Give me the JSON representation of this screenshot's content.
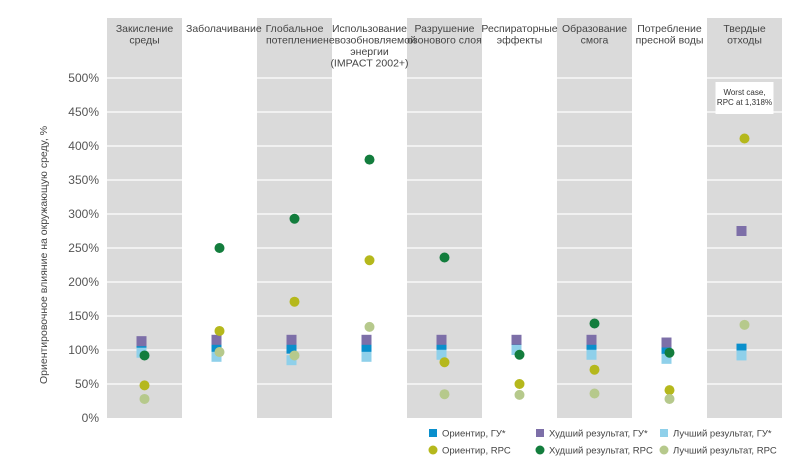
{
  "chart_data": {
    "type": "scatter",
    "ylabel": "Ориентировочное влияние на окружающую среду, %",
    "ylim": [
      0,
      500
    ],
    "y_ticks": [
      0,
      50,
      100,
      150,
      200,
      250,
      300,
      350,
      400,
      450,
      500
    ],
    "y_tick_labels": [
      "0%",
      "50%",
      "100%",
      "150%",
      "200%",
      "250%",
      "300%",
      "350%",
      "400%",
      "450%",
      "500%"
    ],
    "categories": [
      "Закисление среды",
      "Заболачивание",
      "Глобальное потепление",
      "Использование невозобновляемой энергии (IMPACT 2002+)",
      "Разрушение озонового слоя",
      "Респираторные эффекты",
      "Образование смога",
      "Потребление пресной воды",
      "Твердые отходы"
    ],
    "category_label_lines": [
      [
        "Закисление",
        "среды"
      ],
      [
        "Заболачивание"
      ],
      [
        "Глобальное",
        "потепление"
      ],
      [
        "Использование",
        "невозобновляемой",
        "энергии",
        "(IMPACT 2002+)"
      ],
      [
        "Разрушение",
        "озонового слоя"
      ],
      [
        "Респираторные",
        "эффекты"
      ],
      [
        "Образование",
        "смога"
      ],
      [
        "Потребление",
        "пресной воды"
      ],
      [
        "Твердые",
        "отходы"
      ]
    ],
    "band_shading": [
      "gray",
      "white",
      "gray",
      "white",
      "gray",
      "white",
      "gray",
      "white",
      "gray"
    ],
    "series": [
      {
        "name": "Ориентир, ГУ*",
        "marker": "square",
        "color": "#0a8fcc",
        "values": [
          102,
          102,
          102,
          102,
          102,
          102,
          102,
          100,
          102
        ]
      },
      {
        "name": "Худший результат, ГУ*",
        "marker": "square",
        "color": "#7d6fa8",
        "values": [
          113,
          115,
          115,
          115,
          115,
          115,
          115,
          111,
          275
        ]
      },
      {
        "name": "Лучший результат, ГУ*",
        "marker": "square",
        "color": "#8fd0ea",
        "values": [
          96,
          90,
          85,
          90,
          93,
          100,
          93,
          87,
          92
        ]
      },
      {
        "name": "Ориентир, RPC",
        "marker": "circle",
        "color": "#b5b81c",
        "values": [
          48,
          128,
          171,
          232,
          82,
          50,
          71,
          41,
          411
        ]
      },
      {
        "name": "Худший результат, RPC",
        "marker": "circle",
        "color": "#137d3d",
        "values": [
          92,
          250,
          293,
          380,
          236,
          93,
          139,
          96,
          null
        ]
      },
      {
        "name": "Лучший результат, RPC",
        "marker": "circle",
        "color": "#b6c98c",
        "values": [
          28,
          97,
          92,
          134,
          35,
          34,
          36,
          28,
          137
        ]
      }
    ],
    "annotation": {
      "category_index": 8,
      "lines": [
        "Worst case,",
        "RPC at 1,318%"
      ]
    },
    "legend_position": "bottom-right",
    "grid": true,
    "colors": {
      "band": "#dadada",
      "grid": "#ffffff"
    }
  }
}
